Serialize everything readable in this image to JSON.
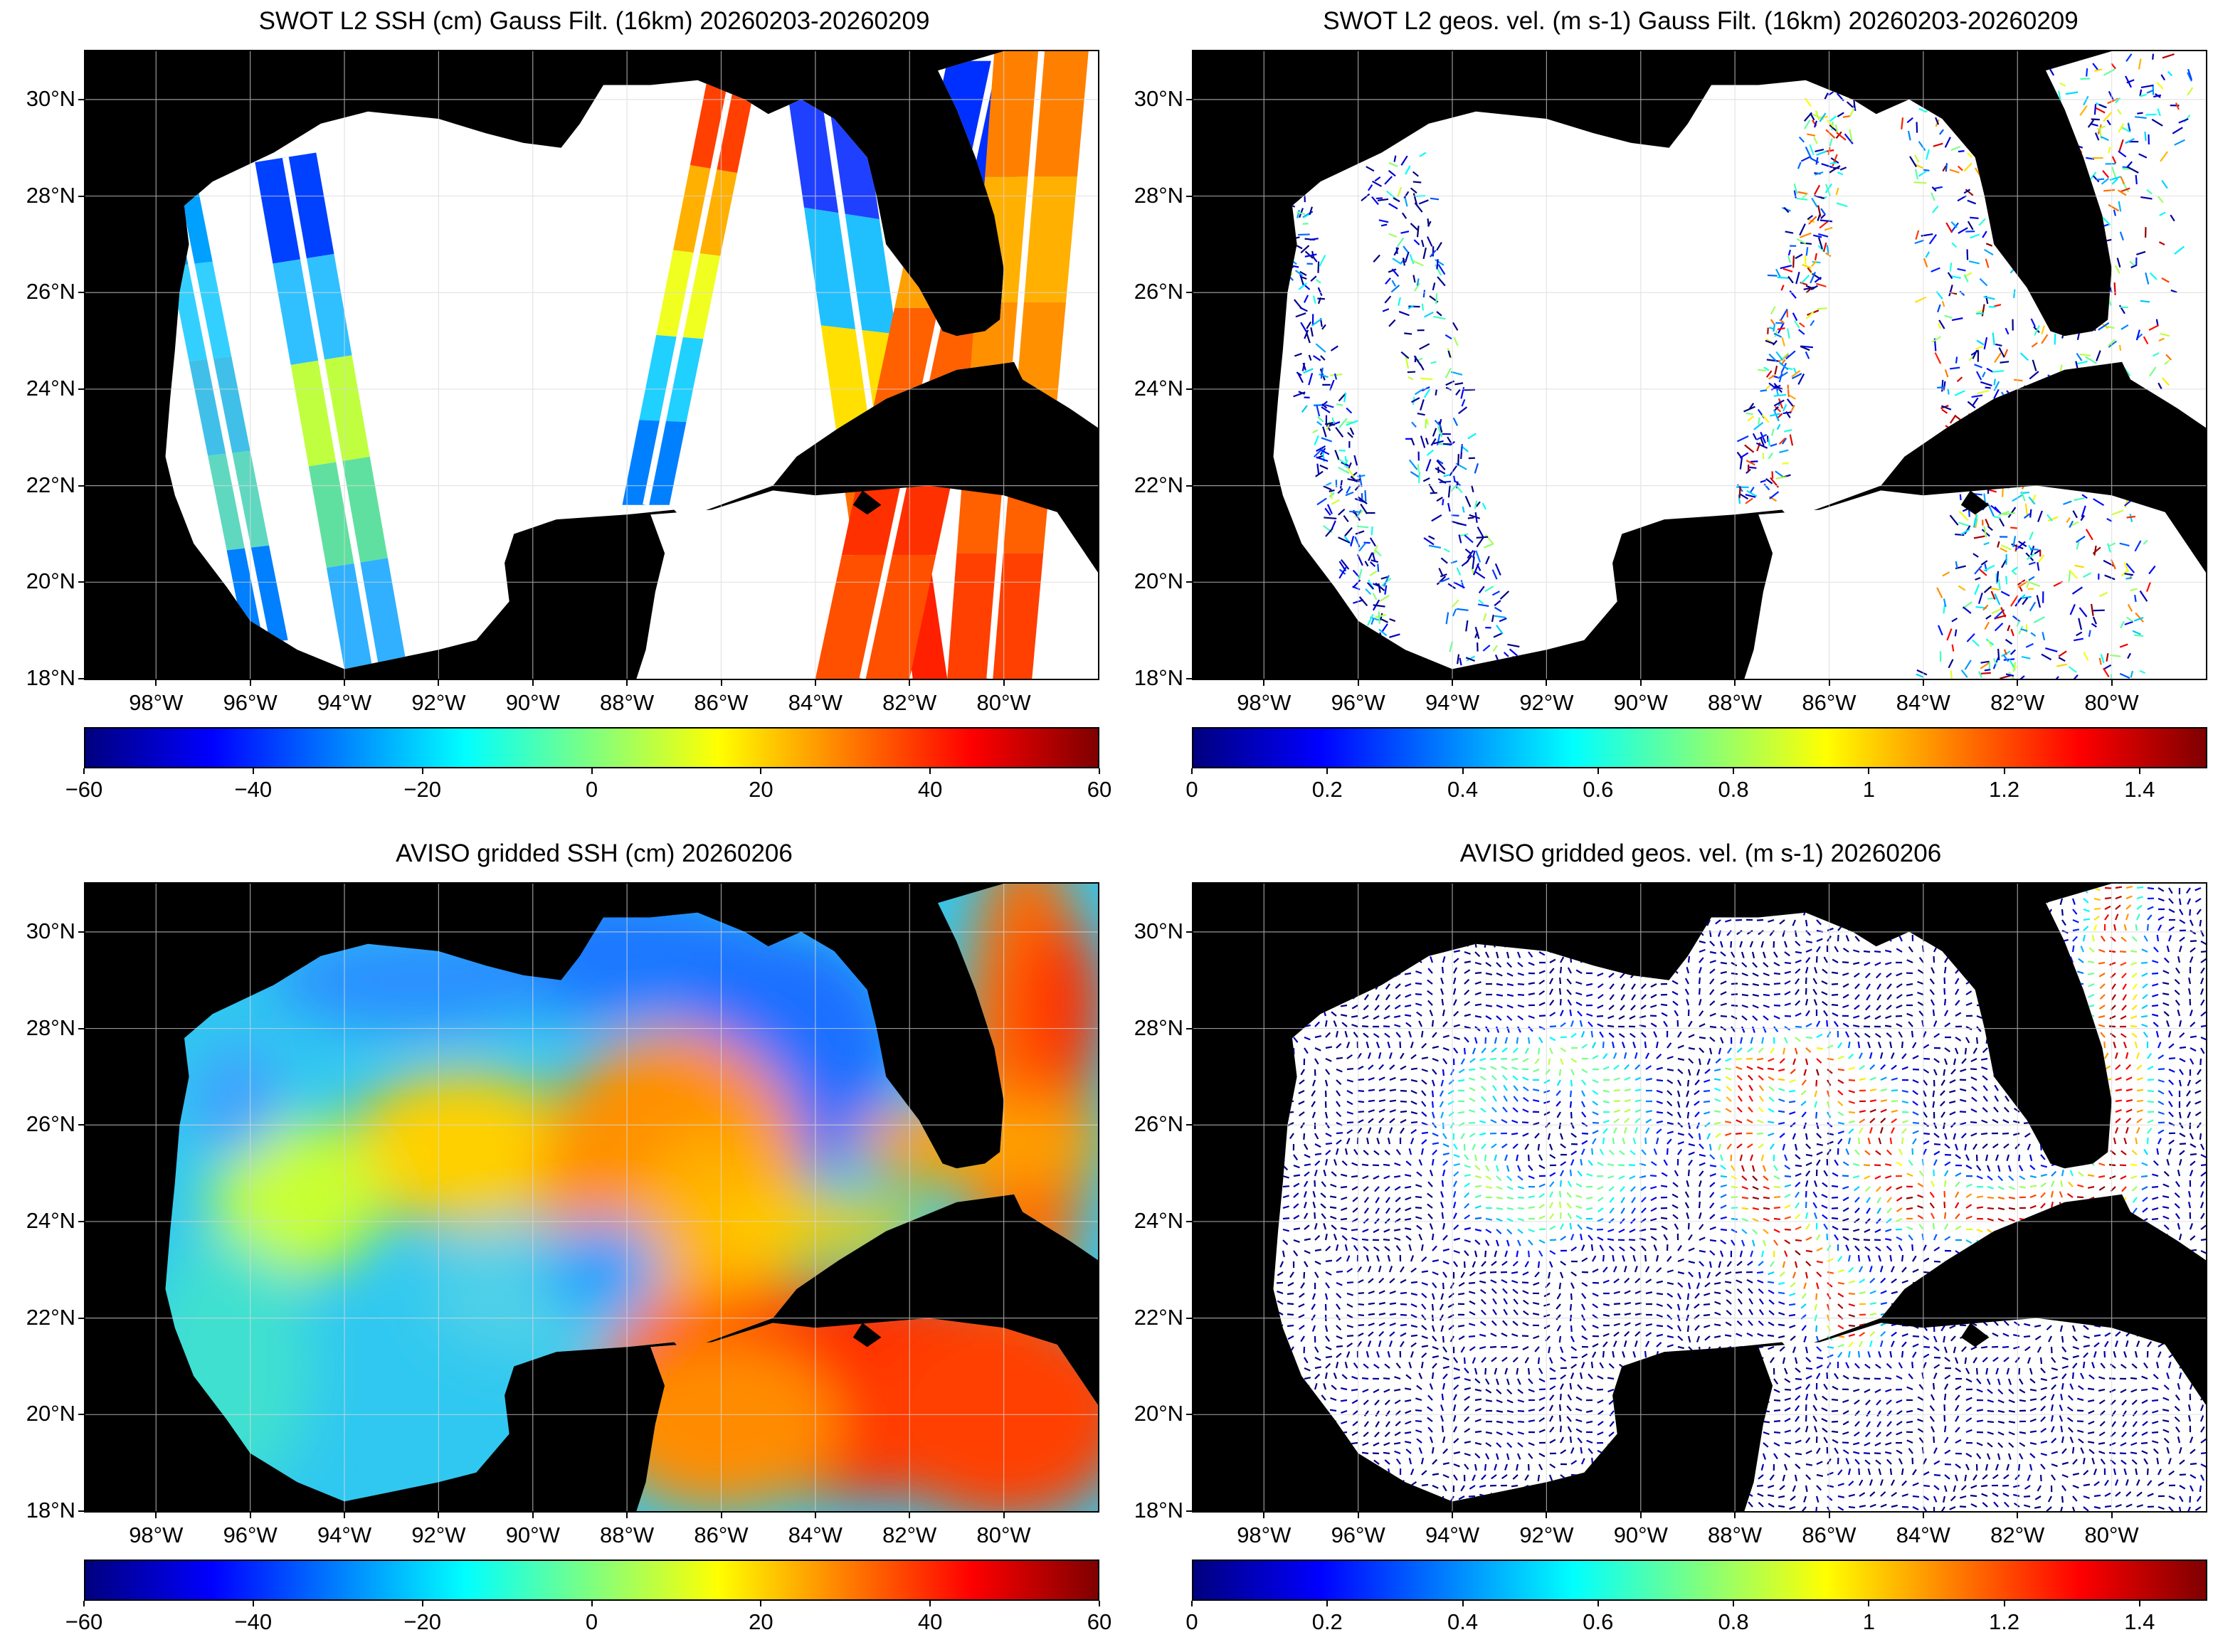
{
  "colormap": [
    "#00007f",
    "#0000ff",
    "#007fff",
    "#00ffff",
    "#7fff7f",
    "#ffff00",
    "#ff7f00",
    "#ff0000",
    "#7f0000"
  ],
  "land_color": "#000000",
  "grid_color": "#d9d9d9",
  "lat_labels": [
    "30°N",
    "28°N",
    "26°N",
    "24°N",
    "22°N",
    "20°N",
    "18°N"
  ],
  "lon_labels": [
    "98°W",
    "96°W",
    "94°W",
    "92°W",
    "90°W",
    "88°W",
    "86°W",
    "84°W",
    "82°W",
    "80°W"
  ],
  "panels": [
    {
      "id": "swot-ssh",
      "title": "SWOT L2 SSH (cm) Gauss Filt. (16km) 20260203-20260209",
      "kind": "swot",
      "field": "ssh",
      "colorbar": {
        "min": -60,
        "max": 60,
        "ticks": [
          "−60",
          "−40",
          "−20",
          "0",
          "20",
          "40",
          "60"
        ]
      }
    },
    {
      "id": "swot-vel",
      "title": "SWOT L2 geos. vel. (m s-1) Gauss Filt. (16km) 20260203-20260209",
      "kind": "swot",
      "field": "vel",
      "colorbar": {
        "min": 0,
        "max": 1.5,
        "ticks": [
          "0",
          "0.2",
          "0.4",
          "0.6",
          "0.8",
          "1",
          "1.2",
          "1.4"
        ]
      }
    },
    {
      "id": "aviso-ssh",
      "title": "AVISO gridded SSH (cm) 20260206",
      "kind": "aviso",
      "field": "ssh",
      "colorbar": {
        "min": -60,
        "max": 60,
        "ticks": [
          "−60",
          "−40",
          "−20",
          "0",
          "20",
          "40",
          "60"
        ]
      }
    },
    {
      "id": "aviso-vel",
      "title": "AVISO gridded geos. vel. (m s-1)  20260206",
      "kind": "aviso",
      "field": "vel",
      "colorbar": {
        "min": 0,
        "max": 1.5,
        "ticks": [
          "0",
          "0.2",
          "0.4",
          "0.6",
          "0.8",
          "1",
          "1.2",
          "1.4"
        ]
      }
    }
  ]
}
